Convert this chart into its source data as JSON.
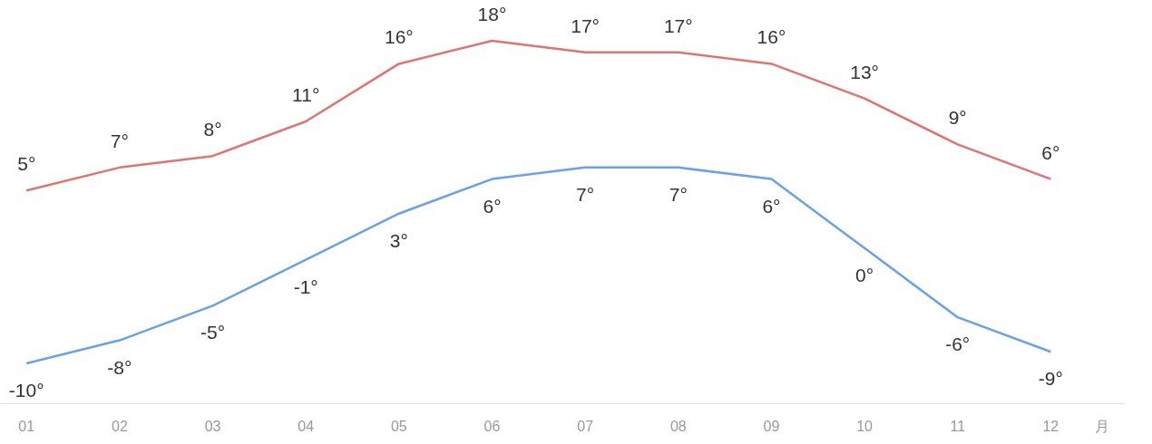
{
  "chart_data": {
    "type": "line",
    "categories": [
      "01",
      "02",
      "03",
      "04",
      "05",
      "06",
      "07",
      "08",
      "09",
      "10",
      "11",
      "12"
    ],
    "xlabel": "月",
    "tick_labels": "x",
    "grid": false,
    "marker": "none",
    "line_style": "solid",
    "series": [
      {
        "color": "#e07470",
        "values": [
          5,
          7,
          8,
          11,
          16,
          18,
          17,
          17,
          16,
          13,
          9,
          6
        ],
        "value_labels": [
          "5°",
          "7°",
          "8°",
          "11°",
          "16°",
          "18°",
          "17°",
          "17°",
          "16°",
          "13°",
          "9°",
          "6°"
        ]
      },
      {
        "color": "#6aa2e6",
        "values": [
          -10,
          -8,
          -5,
          -1,
          3,
          6,
          7,
          7,
          6,
          0,
          -6,
          -9
        ],
        "value_labels": [
          "-10°",
          "-8°",
          "-5°",
          "-1°",
          "3°",
          "6°",
          "7°",
          "7°",
          "6°",
          "0°",
          "-6°",
          "-9°"
        ]
      }
    ]
  }
}
